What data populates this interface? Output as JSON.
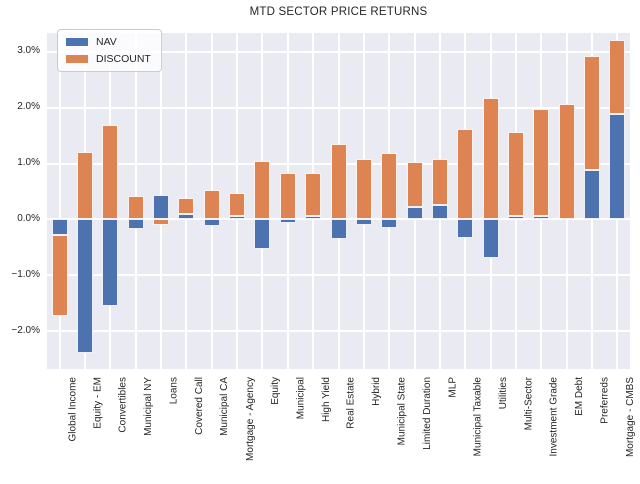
{
  "title": "MTD SECTOR PRICE RETURNS",
  "legend": {
    "items": [
      {
        "label": "NAV",
        "color": "#4c72b0"
      },
      {
        "label": "DISCOUNT",
        "color": "#dd8452"
      }
    ]
  },
  "colors": {
    "figure_background": "#ffffff",
    "plot_background": "#eaeaf2",
    "gridline": "#ffffff",
    "nav_blue": "#4c72b0",
    "discount_orange": "#dd8452",
    "text": "#262626"
  },
  "y_axis": {
    "tick_labels": [
      "3.0%",
      "2.0%",
      "1.0%",
      "0.0%",
      "−1.0%",
      "−2.0%"
    ],
    "tick_values": [
      3,
      2,
      1,
      0,
      -1,
      -2
    ]
  },
  "chart_data": {
    "type": "bar",
    "stacked": true,
    "title": "MTD SECTOR PRICE RETURNS",
    "xlabel": "",
    "ylabel": "",
    "ytick_format": "percent",
    "ylim": [
      -2.68,
      3.34
    ],
    "grid": true,
    "legend_position": "upper left",
    "categories": [
      "Global Income",
      "Equity - EM",
      "Convertibles",
      "Municipal NY",
      "Loans",
      "Covered Call",
      "Municipal CA",
      "Mortgage - Agency",
      "Equity",
      "Municipal",
      "High Yield",
      "Real Estate",
      "Hybrid",
      "Municipal State",
      "Limited Duration",
      "MLP",
      "Municipal Taxable",
      "Utilities",
      "Multi-Sector",
      "Investment Grade",
      "EM Debt",
      "Preferreds",
      "Mortgage - CMBS"
    ],
    "series": [
      {
        "name": "NAV",
        "color": "#4c72b0",
        "values": [
          -0.28,
          -2.4,
          -1.55,
          -0.18,
          0.44,
          0.09,
          -0.11,
          0.06,
          -0.53,
          -0.07,
          0.06,
          -0.35,
          -0.1,
          -0.15,
          0.22,
          0.25,
          -0.33,
          -0.69,
          0.06,
          0.06,
          0.0,
          0.89,
          1.89
        ]
      },
      {
        "name": "DISCOUNT",
        "color": "#dd8452",
        "values": [
          -1.45,
          1.2,
          1.7,
          0.42,
          -0.1,
          0.29,
          0.53,
          0.41,
          1.04,
          0.83,
          0.78,
          1.35,
          1.08,
          1.19,
          0.8,
          0.83,
          1.62,
          2.17,
          1.51,
          1.91,
          2.06,
          2.04,
          1.32
        ]
      }
    ]
  }
}
